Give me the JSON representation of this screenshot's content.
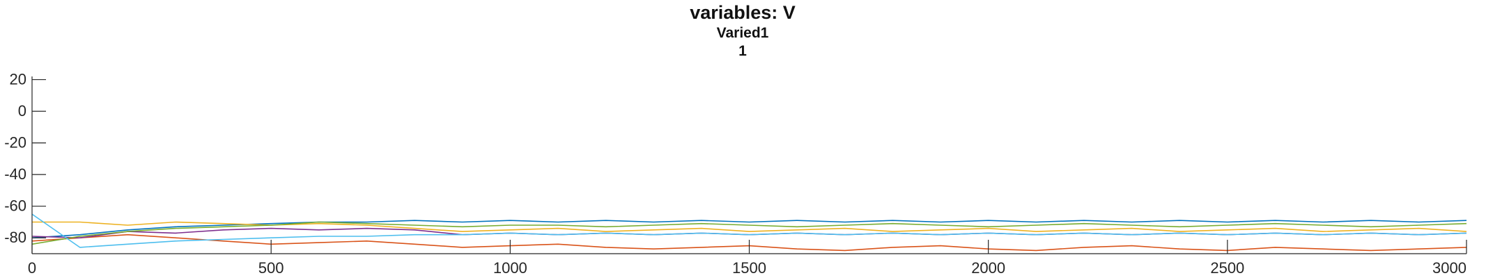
{
  "chart_data": {
    "type": "line",
    "title": "variables: V",
    "subtitle": [
      "Varied1",
      "1"
    ],
    "xlabel": "",
    "ylabel": "",
    "xlim": [
      0,
      3000
    ],
    "ylim": [
      -90,
      22
    ],
    "xticks": [
      0,
      500,
      1000,
      1500,
      2000,
      2500,
      3000
    ],
    "yticks": [
      -80,
      -60,
      -40,
      -20,
      0,
      20
    ],
    "grid": false,
    "legend": "none",
    "series": [
      {
        "color": "#0072BD",
        "x": [
          0,
          100,
          200,
          300,
          400,
          500,
          600,
          700,
          800,
          900,
          1000,
          1100,
          1200,
          1300,
          1400,
          1500,
          1600,
          1700,
          1800,
          1900,
          2000,
          2100,
          2200,
          2300,
          2400,
          2500,
          2600,
          2700,
          2800,
          2900,
          3000
        ],
        "y": [
          -80,
          -78,
          -75,
          -73,
          -72,
          -71,
          -70,
          -70,
          -69,
          -70,
          -69,
          -70,
          -69,
          -70,
          -69,
          -70,
          -69,
          -70,
          -69,
          -70,
          -69,
          -70,
          -69,
          -70,
          -69,
          -70,
          -69,
          -70,
          -69,
          -70,
          -69
        ]
      },
      {
        "color": "#D95319",
        "x": [
          0,
          100,
          200,
          300,
          400,
          500,
          600,
          700,
          800,
          900,
          1000,
          1100,
          1200,
          1300,
          1400,
          1500,
          1600,
          1700,
          1800,
          1900,
          2000,
          2100,
          2200,
          2300,
          2400,
          2500,
          2600,
          2700,
          2800,
          2900,
          3000
        ],
        "y": [
          -82,
          -80,
          -78,
          -80,
          -82,
          -84,
          -83,
          -82,
          -84,
          -86,
          -85,
          -84,
          -86,
          -87,
          -86,
          -85,
          -87,
          -88,
          -86,
          -85,
          -87,
          -88,
          -86,
          -85,
          -87,
          -88,
          -86,
          -87,
          -88,
          -87,
          -86
        ]
      },
      {
        "color": "#EDB120",
        "x": [
          0,
          100,
          200,
          300,
          400,
          500,
          600,
          700,
          800,
          900,
          1000,
          1100,
          1200,
          1300,
          1400,
          1500,
          1600,
          1700,
          1800,
          1900,
          2000,
          2100,
          2200,
          2300,
          2400,
          2500,
          2600,
          2700,
          2800,
          2900,
          3000
        ],
        "y": [
          -70,
          -70,
          -72,
          -70,
          -71,
          -72,
          -71,
          -72,
          -74,
          -76,
          -75,
          -74,
          -76,
          -75,
          -74,
          -76,
          -75,
          -74,
          -76,
          -75,
          -74,
          -76,
          -75,
          -74,
          -76,
          -75,
          -74,
          -76,
          -75,
          -74,
          -76
        ]
      },
      {
        "color": "#7E2F8E",
        "x": [
          0,
          100,
          200,
          300,
          400,
          500,
          600,
          700,
          800,
          900,
          1000,
          1100,
          1200,
          1300,
          1400,
          1500,
          1600,
          1700,
          1800,
          1900,
          2000,
          2100,
          2200,
          2300,
          2400,
          2500,
          2600,
          2700,
          2800,
          2900,
          3000
        ],
        "y": [
          -79,
          -80,
          -76,
          -77,
          -75,
          -74,
          -75,
          -74,
          -75,
          -78,
          -77,
          -78,
          -77,
          -78,
          -77,
          -78,
          -77,
          -78,
          -77,
          -78,
          -77,
          -78,
          -77,
          -78,
          -77,
          -78,
          -77,
          -78,
          -77,
          -78,
          -77
        ]
      },
      {
        "color": "#77AC30",
        "x": [
          0,
          100,
          200,
          300,
          400,
          500,
          600,
          700,
          800,
          900,
          1000,
          1100,
          1200,
          1300,
          1400,
          1500,
          1600,
          1700,
          1800,
          1900,
          2000,
          2100,
          2200,
          2300,
          2400,
          2500,
          2600,
          2700,
          2800,
          2900,
          3000
        ],
        "y": [
          -84,
          -79,
          -76,
          -74,
          -73,
          -72,
          -70,
          -71,
          -72,
          -73,
          -72,
          -72,
          -73,
          -72,
          -71,
          -72,
          -73,
          -72,
          -71,
          -72,
          -73,
          -72,
          -71,
          -72,
          -73,
          -72,
          -71,
          -72,
          -73,
          -72,
          -71
        ]
      },
      {
        "color": "#4DBEEE",
        "x": [
          0,
          100,
          200,
          300,
          400,
          500,
          600,
          700,
          800,
          900,
          1000,
          1100,
          1200,
          1300,
          1400,
          1500,
          1600,
          1700,
          1800,
          1900,
          2000,
          2100,
          2200,
          2300,
          2400,
          2500,
          2600,
          2700,
          2800,
          2900,
          3000
        ],
        "y": [
          -65,
          -86,
          -84,
          -82,
          -81,
          -80,
          -79,
          -79,
          -78,
          -78,
          -77,
          -78,
          -77,
          -78,
          -77,
          -78,
          -77,
          -78,
          -77,
          -78,
          -77,
          -78,
          -77,
          -78,
          -77,
          -78,
          -77,
          -78,
          -77,
          -78,
          -77
        ]
      }
    ]
  }
}
